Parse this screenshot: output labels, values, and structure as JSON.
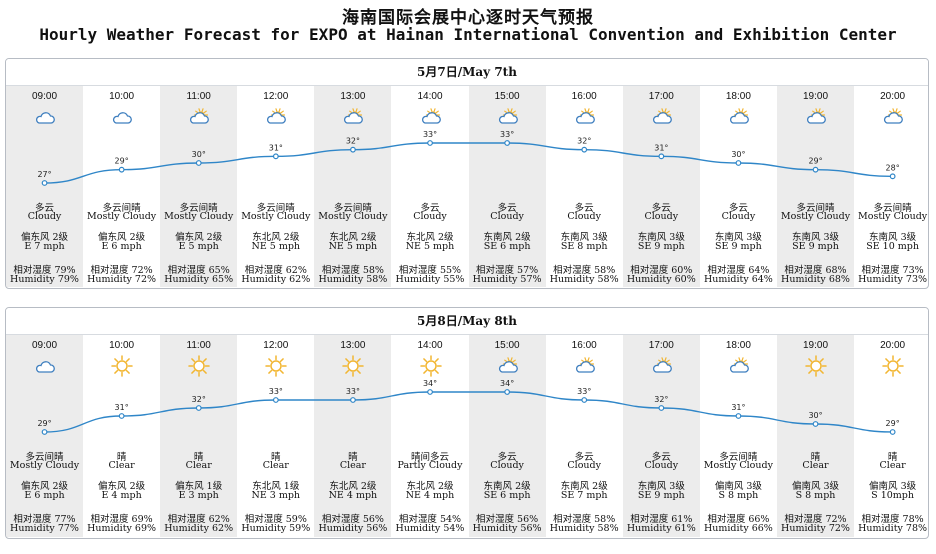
{
  "title_cn": "海南国际会展中心逐时天气预报",
  "title_en": "Hourly Weather Forecast for EXPO at Hainan International Convention and Exhibition Center",
  "temp_unit": "°",
  "days": [
    {
      "date": "5月7日/May 7th",
      "hours": [
        {
          "time": "09:00",
          "icon": "cloud-icon",
          "temp": 27,
          "cond_cn": "多云",
          "cond_en": "Cloudy",
          "wind_cn": "偏东风 2级",
          "wind_en": "E 7 mph",
          "hum_cn": "相对湿度 79%",
          "hum_en": "Humidity 79%"
        },
        {
          "time": "10:00",
          "icon": "cloud-icon",
          "temp": 29,
          "cond_cn": "多云间晴",
          "cond_en": "Mostly Cloudy",
          "wind_cn": "偏东风 2级",
          "wind_en": "E 6 mph",
          "hum_cn": "相对湿度 72%",
          "hum_en": "Humidity 72%"
        },
        {
          "time": "11:00",
          "icon": "sun-cloud-icon",
          "temp": 30,
          "cond_cn": "多云间晴",
          "cond_en": "Mostly Cloudy",
          "wind_cn": "偏东风 2级",
          "wind_en": "E 5 mph",
          "hum_cn": "相对湿度 65%",
          "hum_en": "Humidity 65%"
        },
        {
          "time": "12:00",
          "icon": "sun-cloud-icon",
          "temp": 31,
          "cond_cn": "多云间晴",
          "cond_en": "Mostly Cloudy",
          "wind_cn": "东北风 2级",
          "wind_en": "NE 5 mph",
          "hum_cn": "相对湿度 62%",
          "hum_en": "Humidity 62%"
        },
        {
          "time": "13:00",
          "icon": "sun-cloud-icon",
          "temp": 32,
          "cond_cn": "多云间晴",
          "cond_en": "Mostly Cloudy",
          "wind_cn": "东北风 2级",
          "wind_en": "NE 5 mph",
          "hum_cn": "相对湿度 58%",
          "hum_en": "Humidity 58%"
        },
        {
          "time": "14:00",
          "icon": "sun-cloud-icon",
          "temp": 33,
          "cond_cn": "多云",
          "cond_en": "Cloudy",
          "wind_cn": "东北风 2级",
          "wind_en": "NE 5 mph",
          "hum_cn": "相对湿度 55%",
          "hum_en": "Humidity 55%"
        },
        {
          "time": "15:00",
          "icon": "sun-cloud-icon",
          "temp": 33,
          "cond_cn": "多云",
          "cond_en": "Cloudy",
          "wind_cn": "东南风 2级",
          "wind_en": "SE 6 mph",
          "hum_cn": "相对湿度 57%",
          "hum_en": "Humidity 57%"
        },
        {
          "time": "16:00",
          "icon": "sun-cloud-icon",
          "temp": 32,
          "cond_cn": "多云",
          "cond_en": "Cloudy",
          "wind_cn": "东南风 3级",
          "wind_en": "SE 8 mph",
          "hum_cn": "相对湿度 58%",
          "hum_en": "Humidity 58%"
        },
        {
          "time": "17:00",
          "icon": "sun-cloud-icon",
          "temp": 31,
          "cond_cn": "多云",
          "cond_en": "Cloudy",
          "wind_cn": "东南风 3级",
          "wind_en": "SE 9 mph",
          "hum_cn": "相对湿度 60%",
          "hum_en": "Humidity 60%"
        },
        {
          "time": "18:00",
          "icon": "sun-cloud-icon",
          "temp": 30,
          "cond_cn": "多云",
          "cond_en": "Cloudy",
          "wind_cn": "东南风 3级",
          "wind_en": "SE 9 mph",
          "hum_cn": "相对湿度 64%",
          "hum_en": "Humidity 64%"
        },
        {
          "time": "19:00",
          "icon": "sun-cloud-icon",
          "temp": 29,
          "cond_cn": "多云间晴",
          "cond_en": "Mostly Cloudy",
          "wind_cn": "东南风 3级",
          "wind_en": "SE 9 mph",
          "hum_cn": "相对湿度 68%",
          "hum_en": "Humidity 68%"
        },
        {
          "time": "20:00",
          "icon": "sun-cloud-icon",
          "temp": 28,
          "cond_cn": "多云间晴",
          "cond_en": "Mostly Cloudy",
          "wind_cn": "东南风 3级",
          "wind_en": "SE 10 mph",
          "hum_cn": "相对湿度 73%",
          "hum_en": "Humidity 73%"
        }
      ]
    },
    {
      "date": "5月8日/May 8th",
      "hours": [
        {
          "time": "09:00",
          "icon": "cloud-icon",
          "temp": 29,
          "cond_cn": "多云间晴",
          "cond_en": "Mostly Cloudy",
          "wind_cn": "偏东风 2级",
          "wind_en": "E 6 mph",
          "hum_cn": "相对湿度 77%",
          "hum_en": "Humidity 77%"
        },
        {
          "time": "10:00",
          "icon": "sun-icon",
          "temp": 31,
          "cond_cn": "晴",
          "cond_en": "Clear",
          "wind_cn": "偏东风 2级",
          "wind_en": "E 4 mph",
          "hum_cn": "相对湿度 69%",
          "hum_en": "Humidity 69%"
        },
        {
          "time": "11:00",
          "icon": "sun-icon",
          "temp": 32,
          "cond_cn": "晴",
          "cond_en": "Clear",
          "wind_cn": "偏东风 1级",
          "wind_en": "E 3 mph",
          "hum_cn": "相对湿度 62%",
          "hum_en": "Humidity 62%"
        },
        {
          "time": "12:00",
          "icon": "sun-icon",
          "temp": 33,
          "cond_cn": "晴",
          "cond_en": "Clear",
          "wind_cn": "东北风 1级",
          "wind_en": "NE 3 mph",
          "hum_cn": "相对湿度 59%",
          "hum_en": "Humidity 59%"
        },
        {
          "time": "13:00",
          "icon": "sun-icon",
          "temp": 33,
          "cond_cn": "晴",
          "cond_en": "Clear",
          "wind_cn": "东北风 2级",
          "wind_en": "NE 4 mph",
          "hum_cn": "相对湿度 56%",
          "hum_en": "Humidity 56%"
        },
        {
          "time": "14:00",
          "icon": "sun-icon",
          "temp": 34,
          "cond_cn": "晴间多云",
          "cond_en": "Partly Cloudy",
          "wind_cn": "东北风 2级",
          "wind_en": "NE 4 mph",
          "hum_cn": "相对湿度 54%",
          "hum_en": "Humidity 54%"
        },
        {
          "time": "15:00",
          "icon": "sun-cloud-icon",
          "temp": 34,
          "cond_cn": "多云",
          "cond_en": "Cloudy",
          "wind_cn": "东南风 2级",
          "wind_en": "SE 6 mph",
          "hum_cn": "相对湿度 56%",
          "hum_en": "Humidity 56%"
        },
        {
          "time": "16:00",
          "icon": "sun-cloud-icon",
          "temp": 33,
          "cond_cn": "多云",
          "cond_en": "Cloudy",
          "wind_cn": "东南风 2级",
          "wind_en": "SE 7 mph",
          "hum_cn": "相对湿度 58%",
          "hum_en": "Humidity 58%"
        },
        {
          "time": "17:00",
          "icon": "sun-cloud-icon",
          "temp": 32,
          "cond_cn": "多云",
          "cond_en": "Cloudy",
          "wind_cn": "东南风 3级",
          "wind_en": "SE 9 mph",
          "hum_cn": "相对湿度 61%",
          "hum_en": "Humidity 61%"
        },
        {
          "time": "18:00",
          "icon": "sun-cloud-icon",
          "temp": 31,
          "cond_cn": "多云间晴",
          "cond_en": "Mostly Cloudy",
          "wind_cn": "偏南风 3级",
          "wind_en": "S 8 mph",
          "hum_cn": "相对湿度 66%",
          "hum_en": "Humidity 66%"
        },
        {
          "time": "19:00",
          "icon": "sun-icon",
          "temp": 30,
          "cond_cn": "晴",
          "cond_en": "Clear",
          "wind_cn": "偏南风 3级",
          "wind_en": "S 8 mph",
          "hum_cn": "相对湿度 72%",
          "hum_en": "Humidity 72%"
        },
        {
          "time": "20:00",
          "icon": "sun-icon",
          "temp": 29,
          "cond_cn": "晴",
          "cond_en": "Clear",
          "wind_cn": "偏南风 3级",
          "wind_en": "S 10mph",
          "hum_cn": "相对湿度 78%",
          "hum_en": "Humidity 78%"
        }
      ]
    }
  ],
  "colors": {
    "curve": "#2f86c8",
    "shade": "#ececec",
    "border": "#b7bcc4",
    "sun": "#f2b632",
    "cloud": "#3f7fbf"
  }
}
